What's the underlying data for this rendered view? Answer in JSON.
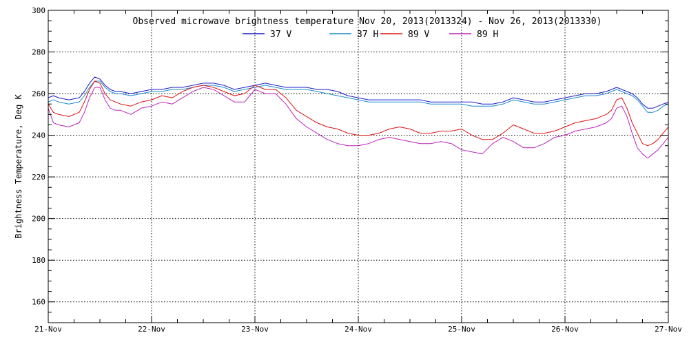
{
  "chart_data": {
    "type": "line",
    "title": "Observed microwave brightness temperature Nov 20, 2013(2013324) - Nov 26, 2013(2013330)",
    "xlabel": "",
    "ylabel": "Brightness Temperature, Deg K",
    "ylim": [
      150,
      300
    ],
    "y_ticks": [
      160,
      180,
      200,
      220,
      240,
      260,
      280,
      300
    ],
    "x_tick_labels": [
      "21-Nov",
      "22-Nov",
      "23-Nov",
      "24-Nov",
      "25-Nov",
      "26-Nov",
      "27-Nov"
    ],
    "x_range_days": [
      0,
      6
    ],
    "grid": true,
    "legend": "top-center",
    "series": [
      {
        "name": "37 V",
        "color": "#1a1acc",
        "x": [
          0,
          0.05,
          0.1,
          0.2,
          0.3,
          0.35,
          0.4,
          0.45,
          0.5,
          0.55,
          0.6,
          0.65,
          0.7,
          0.8,
          0.9,
          1.0,
          1.1,
          1.2,
          1.3,
          1.4,
          1.5,
          1.6,
          1.7,
          1.8,
          1.9,
          2.0,
          2.1,
          2.2,
          2.3,
          2.4,
          2.5,
          2.6,
          2.7,
          2.8,
          2.9,
          3.0,
          3.1,
          3.2,
          3.3,
          3.4,
          3.5,
          3.6,
          3.7,
          3.8,
          3.9,
          4.0,
          4.1,
          4.2,
          4.3,
          4.4,
          4.5,
          4.6,
          4.7,
          4.8,
          4.9,
          5.0,
          5.1,
          5.2,
          5.3,
          5.4,
          5.45,
          5.5,
          5.55,
          5.6,
          5.65,
          5.7,
          5.75,
          5.8,
          5.85,
          5.9,
          5.95,
          6.0
        ],
        "values": [
          258,
          259,
          258,
          257,
          258,
          261,
          265,
          268,
          267,
          264,
          262,
          261,
          261,
          260,
          261,
          262,
          262,
          263,
          263,
          264,
          265,
          265,
          264,
          262,
          263,
          264,
          265,
          264,
          263,
          263,
          263,
          262,
          262,
          261,
          259,
          258,
          257,
          257,
          257,
          257,
          257,
          257,
          256,
          256,
          256,
          256,
          256,
          255,
          255,
          256,
          258,
          257,
          256,
          256,
          257,
          258,
          259,
          260,
          260,
          261,
          262,
          263,
          262,
          261,
          260,
          258,
          255,
          253,
          253,
          254,
          255,
          256
        ]
      },
      {
        "name": "37 H",
        "color": "#1a8ccc",
        "x": [
          0,
          0.05,
          0.1,
          0.2,
          0.3,
          0.35,
          0.4,
          0.45,
          0.5,
          0.55,
          0.6,
          0.65,
          0.7,
          0.8,
          0.9,
          1.0,
          1.1,
          1.2,
          1.3,
          1.4,
          1.5,
          1.6,
          1.7,
          1.8,
          1.9,
          2.0,
          2.1,
          2.2,
          2.3,
          2.4,
          2.5,
          2.6,
          2.7,
          2.8,
          2.9,
          3.0,
          3.1,
          3.2,
          3.3,
          3.4,
          3.5,
          3.6,
          3.7,
          3.8,
          3.9,
          4.0,
          4.1,
          4.2,
          4.3,
          4.4,
          4.5,
          4.6,
          4.7,
          4.8,
          4.9,
          5.0,
          5.1,
          5.2,
          5.3,
          5.4,
          5.45,
          5.5,
          5.55,
          5.6,
          5.65,
          5.7,
          5.75,
          5.8,
          5.85,
          5.9,
          5.95,
          6.0
        ],
        "values": [
          256,
          257,
          256,
          255,
          256,
          259,
          263,
          266,
          266,
          263,
          261,
          260,
          260,
          259,
          260,
          261,
          261,
          262,
          262,
          263,
          264,
          264,
          263,
          261,
          262,
          263,
          264,
          263,
          262,
          262,
          262,
          261,
          260,
          259,
          258,
          257,
          256,
          256,
          256,
          256,
          256,
          256,
          255,
          255,
          255,
          255,
          254,
          254,
          254,
          255,
          257,
          256,
          255,
          255,
          256,
          257,
          258,
          259,
          259,
          260,
          261,
          262,
          261,
          260,
          259,
          257,
          254,
          251,
          251,
          252,
          254,
          255
        ]
      },
      {
        "name": "89 V",
        "color": "#dd1111",
        "x": [
          0,
          0.05,
          0.1,
          0.2,
          0.3,
          0.35,
          0.4,
          0.45,
          0.5,
          0.55,
          0.6,
          0.65,
          0.7,
          0.8,
          0.9,
          1.0,
          1.1,
          1.2,
          1.3,
          1.4,
          1.5,
          1.6,
          1.7,
          1.8,
          1.9,
          2.0,
          2.1,
          2.2,
          2.3,
          2.4,
          2.5,
          2.6,
          2.7,
          2.8,
          2.9,
          3.0,
          3.1,
          3.2,
          3.3,
          3.4,
          3.5,
          3.6,
          3.7,
          3.8,
          3.9,
          4.0,
          4.1,
          4.2,
          4.3,
          4.4,
          4.5,
          4.6,
          4.7,
          4.8,
          4.9,
          5.0,
          5.1,
          5.2,
          5.3,
          5.4,
          5.45,
          5.5,
          5.55,
          5.6,
          5.65,
          5.7,
          5.75,
          5.8,
          5.85,
          5.9,
          5.95,
          6.0
        ],
        "values": [
          255,
          251,
          250,
          249,
          251,
          256,
          262,
          266,
          265,
          260,
          257,
          256,
          255,
          254,
          256,
          257,
          259,
          258,
          261,
          263,
          264,
          263,
          261,
          259,
          260,
          264,
          262,
          262,
          258,
          252,
          249,
          246,
          244,
          243,
          241,
          240,
          240,
          241,
          243,
          244,
          243,
          241,
          241,
          242,
          242,
          243,
          240,
          238,
          238,
          241,
          245,
          243,
          241,
          241,
          242,
          244,
          246,
          247,
          248,
          250,
          252,
          257,
          258,
          253,
          246,
          241,
          236,
          235,
          236,
          238,
          241,
          244
        ]
      },
      {
        "name": "89 H",
        "color": "#bb22bb",
        "x": [
          0,
          0.05,
          0.1,
          0.2,
          0.3,
          0.35,
          0.4,
          0.45,
          0.5,
          0.55,
          0.6,
          0.65,
          0.7,
          0.8,
          0.9,
          1.0,
          1.1,
          1.2,
          1.3,
          1.4,
          1.5,
          1.6,
          1.7,
          1.8,
          1.9,
          2.0,
          2.1,
          2.2,
          2.3,
          2.4,
          2.5,
          2.6,
          2.7,
          2.8,
          2.9,
          3.0,
          3.1,
          3.2,
          3.3,
          3.4,
          3.5,
          3.6,
          3.7,
          3.8,
          3.9,
          4.0,
          4.1,
          4.2,
          4.3,
          4.4,
          4.5,
          4.6,
          4.7,
          4.8,
          4.9,
          5.0,
          5.1,
          5.2,
          5.3,
          5.4,
          5.45,
          5.5,
          5.55,
          5.6,
          5.65,
          5.7,
          5.75,
          5.8,
          5.85,
          5.9,
          5.95,
          6.0
        ],
        "values": [
          253,
          246,
          245,
          244,
          246,
          251,
          258,
          263,
          263,
          257,
          253,
          252,
          252,
          250,
          253,
          254,
          256,
          255,
          258,
          261,
          263,
          262,
          259,
          256,
          256,
          262,
          260,
          260,
          255,
          248,
          244,
          241,
          238,
          236,
          235,
          235,
          236,
          238,
          239,
          238,
          237,
          236,
          236,
          237,
          236,
          233,
          232,
          231,
          236,
          239,
          237,
          234,
          234,
          236,
          239,
          240,
          242,
          243,
          244,
          246,
          248,
          253,
          254,
          249,
          241,
          234,
          231,
          229,
          231,
          233,
          236,
          239
        ]
      }
    ]
  }
}
